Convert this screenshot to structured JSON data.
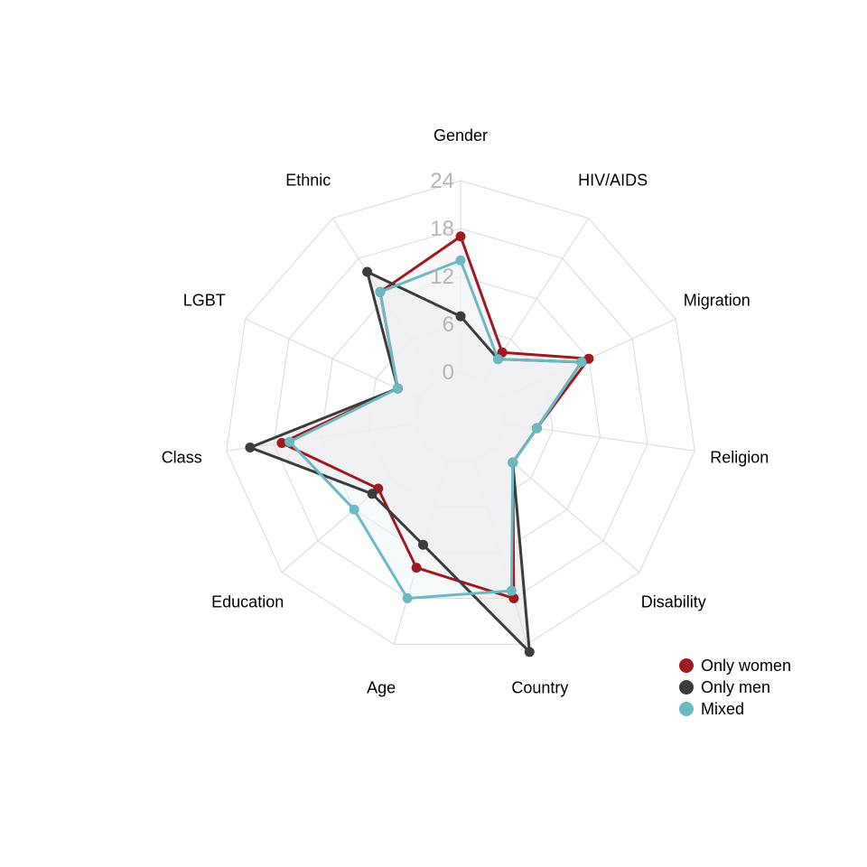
{
  "chart_data": {
    "type": "radar",
    "categories": [
      "Gender",
      "HIV/AIDS",
      "Migration",
      "Religion",
      "Disability",
      "Country",
      "Age",
      "Education",
      "Class",
      "LGBT",
      "Ethnic"
    ],
    "rlim": [
      0,
      24
    ],
    "ticks": [
      0,
      6,
      12,
      18,
      24
    ],
    "tick_labels": [
      "0",
      "6",
      "12",
      "18",
      "24"
    ],
    "grid": true,
    "legend_position": "bottom-right",
    "series": [
      {
        "name": "Only women",
        "color": "#9e1a20",
        "fill": "#fbeeee",
        "values": [
          17,
          4,
          12,
          4,
          3,
          18,
          14,
          8,
          17,
          3,
          13
        ]
      },
      {
        "name": "Only men",
        "color": "#3c3c3c",
        "fill": "#e6e2e3",
        "values": [
          7,
          3,
          11,
          4,
          3,
          25,
          11,
          9,
          21,
          3,
          16
        ]
      },
      {
        "name": "Mixed",
        "color": "#6bb9c4",
        "fill": "#eef6f8",
        "values": [
          14,
          3,
          11,
          4,
          3,
          17,
          18,
          12,
          16,
          3,
          13
        ]
      }
    ]
  }
}
